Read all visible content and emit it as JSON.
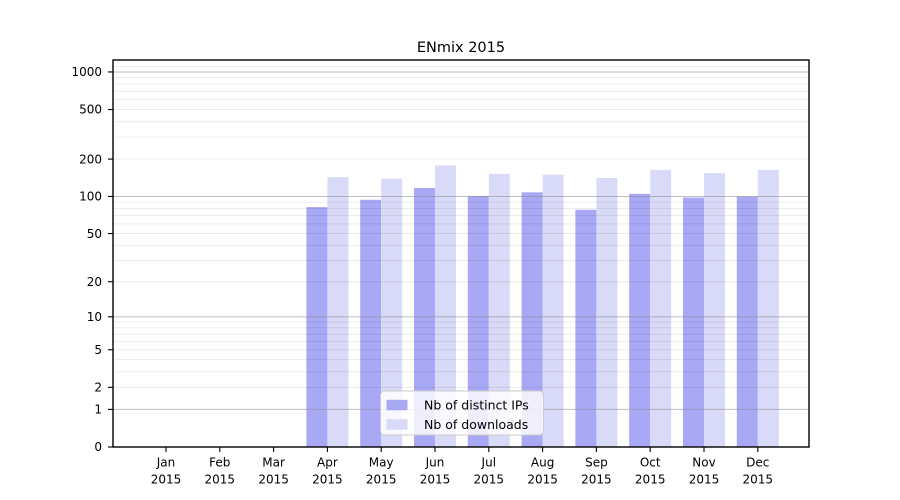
{
  "figure": {
    "background": "#ffffff"
  },
  "chart_data": {
    "type": "bar",
    "title": "ENmix 2015",
    "x_axis": {
      "months": [
        "Jan",
        "Feb",
        "Mar",
        "Apr",
        "May",
        "Jun",
        "Jul",
        "Aug",
        "Sep",
        "Oct",
        "Nov",
        "Dec"
      ],
      "year": "2015"
    },
    "categories": [
      "Jan 2015",
      "Feb 2015",
      "Mar 2015",
      "Apr 2015",
      "May 2015",
      "Jun 2015",
      "Jul 2015",
      "Aug 2015",
      "Sep 2015",
      "Oct 2015",
      "Nov 2015",
      "Dec 2015"
    ],
    "series": [
      {
        "name": "Nb of distinct IPs",
        "color": "#a8a8f5",
        "values": [
          0,
          0,
          0,
          82,
          94,
          117,
          101,
          108,
          78,
          105,
          98,
          100
        ]
      },
      {
        "name": "Nb of downloads",
        "color": "#d9d9f8",
        "values": [
          0,
          0,
          0,
          143,
          139,
          178,
          152,
          150,
          141,
          164,
          154,
          164
        ]
      }
    ],
    "y_ticks": [
      0,
      1,
      2,
      5,
      10,
      20,
      50,
      100,
      200,
      500,
      1000
    ],
    "y_scale": "log10(value+1)",
    "ylim": [
      0,
      1200
    ],
    "grid": true,
    "legend_position": "lower center"
  },
  "colors": {
    "grid_major": "#8a8a8a",
    "grid_minor": "#e8e8e8",
    "axis": "#000000",
    "legend_border": "#cccccc",
    "legend_background": "#ffffff"
  }
}
